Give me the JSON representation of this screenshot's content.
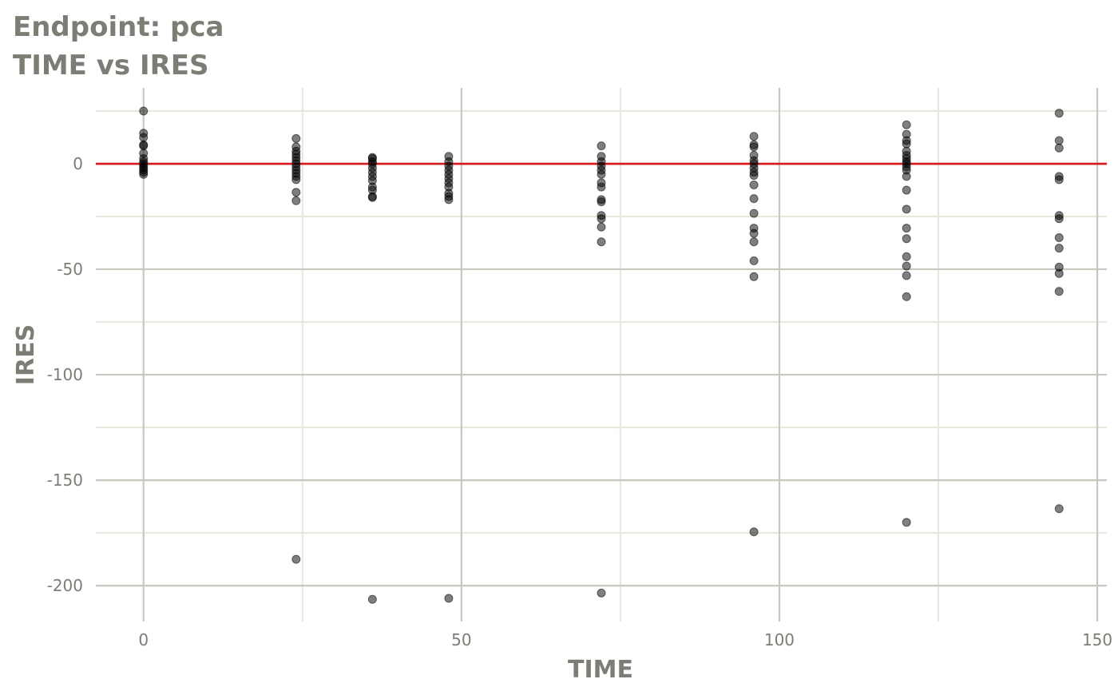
{
  "title": "Endpoint:  pca",
  "subtitle": "TIME vs IRES",
  "chart_data": {
    "type": "scatter",
    "title": "Endpoint:  pca",
    "subtitle": "TIME vs IRES",
    "xlabel": "TIME",
    "ylabel": "IRES",
    "xlim": [
      -7.5,
      151.5
    ],
    "ylim": [
      -217,
      36
    ],
    "x_ticks": [
      0,
      50,
      100,
      150
    ],
    "x_tick_labels": [
      "0",
      "50",
      "100",
      "150"
    ],
    "y_ticks": [
      0,
      -50,
      -100,
      -150,
      -200
    ],
    "y_tick_labels": [
      "0",
      "-50",
      "-100",
      "-150",
      "-200"
    ],
    "x_minor_ticks": [
      25,
      75,
      125
    ],
    "y_minor_ticks": [
      25,
      -25,
      -75,
      -125,
      -175
    ],
    "grid": true,
    "reference_line": {
      "y": 0,
      "color": "#d7191c"
    },
    "point_color": "#000000",
    "point_alpha": 0.5,
    "colors": {
      "major_grid": "#c8c8c0",
      "minor_grid": "#e6e6da",
      "text": "#7d7d75"
    },
    "points": [
      [
        0,
        25
      ],
      [
        0,
        14.5
      ],
      [
        0,
        12.5
      ],
      [
        0,
        9
      ],
      [
        0,
        8.5
      ],
      [
        0,
        5
      ],
      [
        0,
        2.5
      ],
      [
        0,
        1
      ],
      [
        0,
        0
      ],
      [
        0,
        -1
      ],
      [
        0,
        -2
      ],
      [
        0,
        -3
      ],
      [
        0,
        -4
      ],
      [
        0,
        -5
      ],
      [
        24,
        12
      ],
      [
        24,
        8
      ],
      [
        24,
        6
      ],
      [
        24,
        4.5
      ],
      [
        24,
        3
      ],
      [
        24,
        1.5
      ],
      [
        24,
        0
      ],
      [
        24,
        -1.5
      ],
      [
        24,
        -3
      ],
      [
        24,
        -4.5
      ],
      [
        24,
        -6
      ],
      [
        24,
        -7.5
      ],
      [
        24,
        -13.5
      ],
      [
        24,
        -17.5
      ],
      [
        24,
        -187.5
      ],
      [
        36,
        3
      ],
      [
        36,
        2.5
      ],
      [
        36,
        1
      ],
      [
        36,
        0
      ],
      [
        36,
        -2
      ],
      [
        36,
        -4
      ],
      [
        36,
        -6
      ],
      [
        36,
        -8
      ],
      [
        36,
        -11
      ],
      [
        36,
        -12.5
      ],
      [
        36,
        -15.5
      ],
      [
        36,
        -16
      ],
      [
        36,
        -206.5
      ],
      [
        48,
        3.5
      ],
      [
        48,
        1
      ],
      [
        48,
        -1
      ],
      [
        48,
        -3
      ],
      [
        48,
        -5
      ],
      [
        48,
        -7
      ],
      [
        48,
        -9
      ],
      [
        48,
        -11
      ],
      [
        48,
        -14
      ],
      [
        48,
        -15.5
      ],
      [
        48,
        -17
      ],
      [
        48,
        -206
      ],
      [
        72,
        8.5
      ],
      [
        72,
        3.5
      ],
      [
        72,
        1
      ],
      [
        72,
        -1
      ],
      [
        72,
        -3
      ],
      [
        72,
        -5
      ],
      [
        72,
        -9
      ],
      [
        72,
        -11
      ],
      [
        72,
        -17
      ],
      [
        72,
        -18
      ],
      [
        72,
        -24.5
      ],
      [
        72,
        -26
      ],
      [
        72,
        -30
      ],
      [
        72,
        -37
      ],
      [
        72,
        -203.5
      ],
      [
        96,
        13
      ],
      [
        96,
        9
      ],
      [
        96,
        8
      ],
      [
        96,
        4
      ],
      [
        96,
        1.5
      ],
      [
        96,
        0
      ],
      [
        96,
        -2
      ],
      [
        96,
        -4
      ],
      [
        96,
        -5.5
      ],
      [
        96,
        -10
      ],
      [
        96,
        -16.5
      ],
      [
        96,
        -23.5
      ],
      [
        96,
        -30.5
      ],
      [
        96,
        -33
      ],
      [
        96,
        -37
      ],
      [
        96,
        -46
      ],
      [
        96,
        -53.5
      ],
      [
        96,
        -174.5
      ],
      [
        120,
        18.5
      ],
      [
        120,
        14
      ],
      [
        120,
        11
      ],
      [
        120,
        9.5
      ],
      [
        120,
        6
      ],
      [
        120,
        4
      ],
      [
        120,
        2.5
      ],
      [
        120,
        1
      ],
      [
        120,
        0
      ],
      [
        120,
        -1.5
      ],
      [
        120,
        -3
      ],
      [
        120,
        -6
      ],
      [
        120,
        -12.5
      ],
      [
        120,
        -21.5
      ],
      [
        120,
        -30.5
      ],
      [
        120,
        -35.5
      ],
      [
        120,
        -44
      ],
      [
        120,
        -48.5
      ],
      [
        120,
        -53
      ],
      [
        120,
        -63
      ],
      [
        120,
        -170
      ],
      [
        144,
        24
      ],
      [
        144,
        11
      ],
      [
        144,
        7.5
      ],
      [
        144,
        -6
      ],
      [
        144,
        -7.5
      ],
      [
        144,
        -24.5
      ],
      [
        144,
        -26
      ],
      [
        144,
        -35
      ],
      [
        144,
        -40
      ],
      [
        144,
        -49
      ],
      [
        144,
        -52
      ],
      [
        144,
        -60.5
      ],
      [
        144,
        -163.5
      ]
    ]
  }
}
